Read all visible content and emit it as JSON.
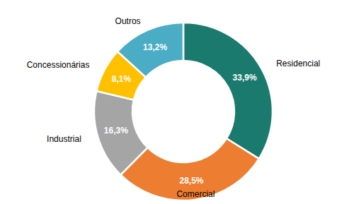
{
  "chart_data": {
    "type": "donut",
    "categories": [
      "Residencial",
      "Comercial",
      "Industrial",
      "Concessionárias",
      "Outros"
    ],
    "values": [
      33.9,
      28.5,
      16.3,
      8.1,
      13.2
    ],
    "value_labels": [
      "33,9%",
      "28,5%",
      "16,3%",
      "8,1%",
      "13,2%"
    ],
    "colors": [
      "#1b7a6e",
      "#ed7d31",
      "#a5a5a5",
      "#ffc000",
      "#4bacc6"
    ],
    "data_labels": true
  }
}
